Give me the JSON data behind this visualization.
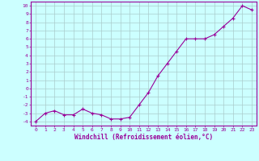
{
  "x": [
    0,
    1,
    2,
    3,
    4,
    5,
    6,
    7,
    8,
    9,
    10,
    11,
    12,
    13,
    14,
    15,
    16,
    17,
    18,
    19,
    20,
    21,
    22,
    23
  ],
  "y": [
    -4.0,
    -3.0,
    -2.7,
    -3.2,
    -3.2,
    -2.5,
    -3.0,
    -3.2,
    -3.7,
    -3.7,
    -3.5,
    -2.0,
    -0.5,
    1.5,
    3.0,
    4.5,
    6.0,
    6.0,
    6.0,
    6.5,
    7.5,
    8.5,
    10.0,
    9.5
  ],
  "line_color": "#990099",
  "marker": "+",
  "bg_color": "#ccffff",
  "grid_color": "#aacccc",
  "xlabel": "Windchill (Refroidissement éolien,°C)",
  "ylabel_ticks": [
    "10",
    "9",
    "8",
    "7",
    "6",
    "5",
    "4",
    "3",
    "2",
    "1",
    "0",
    "-1",
    "-2",
    "-3",
    "-4"
  ],
  "ytick_vals": [
    10,
    9,
    8,
    7,
    6,
    5,
    4,
    3,
    2,
    1,
    0,
    -1,
    -2,
    -3,
    -4
  ],
  "xtick_vals": [
    0,
    1,
    2,
    3,
    4,
    5,
    6,
    7,
    8,
    9,
    10,
    11,
    12,
    13,
    14,
    15,
    16,
    17,
    18,
    19,
    20,
    21,
    22,
    23
  ],
  "xlim": [
    -0.5,
    23.5
  ],
  "ylim": [
    -4.5,
    10.5
  ],
  "tick_color": "#990099",
  "label_color": "#990099",
  "spine_color": "#990099",
  "figsize": [
    3.2,
    2.0
  ],
  "dpi": 100
}
